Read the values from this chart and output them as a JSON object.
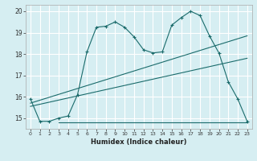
{
  "title": "",
  "xlabel": "Humidex (Indice chaleur)",
  "xlim": [
    -0.5,
    23.5
  ],
  "ylim": [
    14.5,
    20.3
  ],
  "yticks": [
    15,
    16,
    17,
    18,
    19,
    20
  ],
  "xticks": [
    0,
    1,
    2,
    3,
    4,
    5,
    6,
    7,
    8,
    9,
    10,
    11,
    12,
    13,
    14,
    15,
    16,
    17,
    18,
    19,
    20,
    21,
    22,
    23
  ],
  "bg_color": "#d6eef2",
  "grid_color": "#ffffff",
  "line_color": "#1a6b6b",
  "line1_x": [
    0,
    1,
    2,
    3,
    4,
    5,
    6,
    7,
    8,
    9,
    10,
    11,
    12,
    13,
    14,
    15,
    16,
    17,
    18,
    19,
    20,
    21,
    22,
    23
  ],
  "line1_y": [
    15.9,
    14.85,
    14.85,
    15.0,
    15.1,
    16.1,
    18.1,
    19.25,
    19.3,
    19.5,
    19.25,
    18.8,
    18.2,
    18.05,
    18.1,
    19.35,
    19.7,
    20.0,
    19.8,
    18.85,
    18.05,
    16.7,
    15.9,
    14.85
  ],
  "line2_x": [
    0,
    23
  ],
  "line2_y": [
    15.7,
    18.85
  ],
  "line3_x": [
    0,
    23
  ],
  "line3_y": [
    15.55,
    17.8
  ],
  "line4_x": [
    3,
    23
  ],
  "line4_y": [
    14.8,
    14.8
  ]
}
